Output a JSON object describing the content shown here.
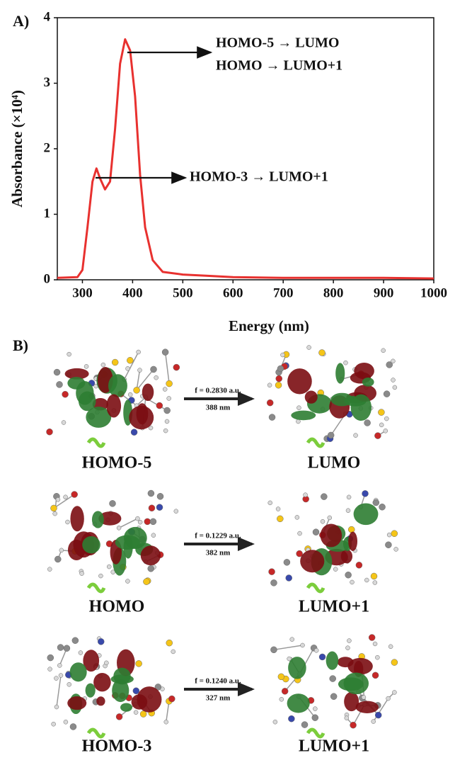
{
  "panel_a": "A)",
  "chart_data": {
    "type": "line",
    "xlabel": "Energy (nm)",
    "ylabel": "Absorbance (×10⁴)",
    "x": [
      250,
      290,
      300,
      310,
      320,
      328,
      335,
      345,
      355,
      365,
      375,
      385,
      395,
      405,
      415,
      425,
      440,
      460,
      500,
      550,
      600,
      700,
      800,
      900,
      1000
    ],
    "values": [
      0.03,
      0.04,
      0.15,
      0.8,
      1.5,
      1.7,
      1.55,
      1.38,
      1.5,
      2.3,
      3.3,
      3.67,
      3.5,
      2.8,
      1.6,
      0.8,
      0.3,
      0.12,
      0.08,
      0.06,
      0.04,
      0.03,
      0.03,
      0.03,
      0.02
    ],
    "color": "#e8312f",
    "xlim": [
      250,
      1000
    ],
    "xticks": [
      300,
      400,
      500,
      600,
      700,
      800,
      900,
      1000
    ],
    "ylim": [
      0,
      4
    ],
    "yticks": [
      0,
      1,
      2,
      3,
      4
    ],
    "annotations": [
      {
        "lines": [
          "HOMO-5 → LUMO",
          "HOMO → LUMO+1"
        ]
      },
      {
        "lines": [
          "HOMO-3 → LUMO+1"
        ]
      }
    ]
  },
  "panel_b": {
    "label": "B)",
    "transitions": [
      {
        "from": "HOMO-5",
        "to": "LUMO",
        "f": "f = 0.2830 a.u.",
        "wavelength": "388 nm"
      },
      {
        "from": "HOMO",
        "to": "LUMO+1",
        "f": "f = 0.1229 a.u.",
        "wavelength": "382 nm"
      },
      {
        "from": "HOMO-3",
        "to": "LUMO+1",
        "f": "f = 0.1240 a.u.",
        "wavelength": "327 nm"
      }
    ]
  }
}
